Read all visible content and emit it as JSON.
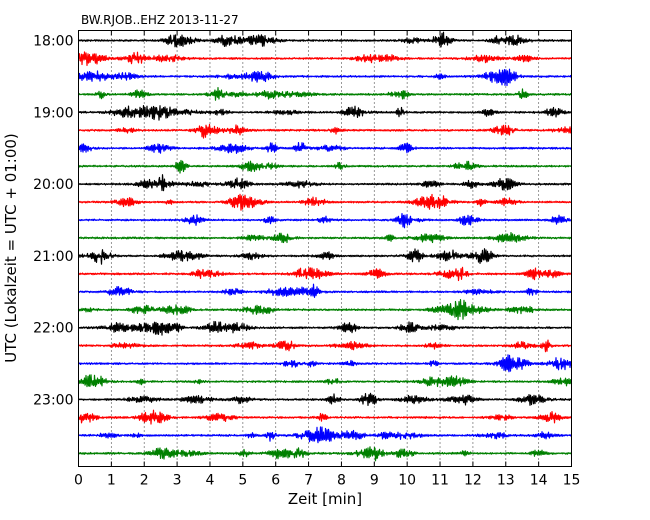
{
  "chart_data": {
    "type": "line",
    "title": "BW.RJOB..EHZ 2013-11-27",
    "xlabel": "Zeit  [min]",
    "ylabel": "UTC (Lokalzeit = UTC + 01:00)",
    "xlim": [
      0,
      15
    ],
    "x_ticks": [
      "0",
      "1",
      "2",
      "3",
      "4",
      "5",
      "6",
      "7",
      "8",
      "9",
      "10",
      "11",
      "12",
      "13",
      "14",
      "15"
    ],
    "y_tick_labels": [
      "18:00",
      "19:00",
      "20:00",
      "21:00",
      "22:00",
      "23:00"
    ],
    "grid": "vertical dotted at each minute",
    "traces_per_hour": 4,
    "trace_count": 24,
    "trace_color_cycle": [
      "#000000",
      "#ff0000",
      "#0000ff",
      "#008000"
    ]
  }
}
